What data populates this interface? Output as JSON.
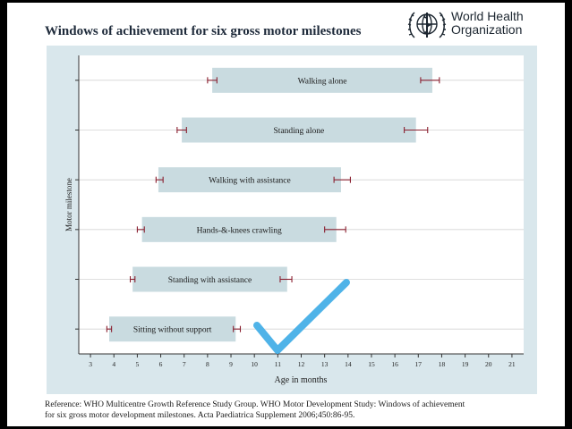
{
  "header": {
    "title": "Windows of achievement for six gross motor milestones",
    "org_line1": "World Health",
    "org_line2": "Organization"
  },
  "chart_data": {
    "type": "bar",
    "orientation": "horizontal-range",
    "xlabel": "Age in months",
    "ylabel": "Motor milestone",
    "xlim": [
      2.5,
      21.5
    ],
    "xticks": [
      3,
      4,
      5,
      6,
      7,
      8,
      9,
      10,
      11,
      12,
      13,
      14,
      15,
      16,
      17,
      18,
      19,
      20,
      21
    ],
    "grid": "horizontal",
    "background": "#d9e7ec",
    "bar_color": "#c9dbe0",
    "errorbar_color": "#8a2030",
    "milestones": [
      {
        "label": "Walking alone",
        "start": 8.2,
        "end": 17.6,
        "start_ci": [
          8.0,
          8.4
        ],
        "end_ci": [
          17.1,
          17.9
        ]
      },
      {
        "label": "Standing alone",
        "start": 6.9,
        "end": 16.9,
        "start_ci": [
          6.7,
          7.1
        ],
        "end_ci": [
          16.4,
          17.4
        ]
      },
      {
        "label": "Walking with assistance",
        "start": 5.9,
        "end": 13.7,
        "start_ci": [
          5.8,
          6.1
        ],
        "end_ci": [
          13.4,
          14.1
        ]
      },
      {
        "label": "Hands-&-knees crawling",
        "start": 5.2,
        "end": 13.5,
        "start_ci": [
          5.0,
          5.3
        ],
        "end_ci": [
          13.0,
          13.9
        ]
      },
      {
        "label": "Standing with assistance",
        "start": 4.8,
        "end": 11.4,
        "start_ci": [
          4.7,
          4.9
        ],
        "end_ci": [
          11.1,
          11.6
        ]
      },
      {
        "label": "Sitting without support",
        "start": 3.8,
        "end": 9.2,
        "start_ci": [
          3.7,
          3.9
        ],
        "end_ci": [
          9.1,
          9.4
        ]
      }
    ]
  },
  "footer": {
    "reference_line1": "Reference: WHO Multicentre Growth Reference Study Group. WHO Motor Development Study: Windows of achievement",
    "reference_line2": "for six gross motor development milestones. Acta Paediatrica Supplement 2006;450:86-95."
  },
  "overlay": {
    "checkmark_color": "#4fb3e8"
  }
}
